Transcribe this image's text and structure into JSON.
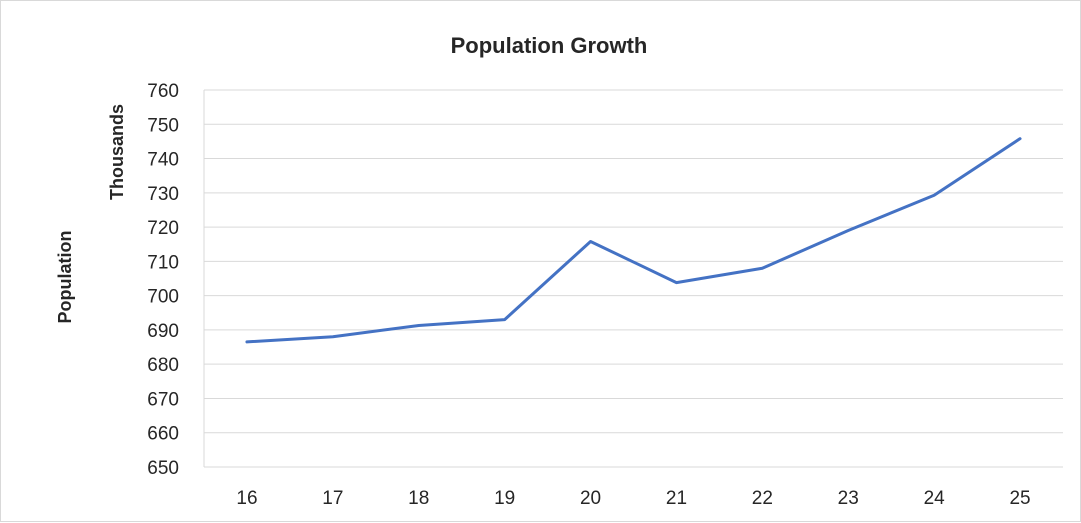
{
  "chart_data": {
    "type": "line",
    "title": "Population Growth",
    "ylabel": "Population",
    "y_units_label": "Thousands",
    "xlabel": "",
    "categories": [
      "16",
      "17",
      "18",
      "19",
      "20",
      "21",
      "22",
      "23",
      "24",
      "25"
    ],
    "series": [
      {
        "values": [
          686.5,
          688,
          691.3,
          693,
          715.8,
          703.8,
          708,
          719,
          729.3,
          745.8
        ],
        "color": "#4472c4"
      }
    ],
    "ylim": [
      650,
      760
    ],
    "yticks": [
      "650",
      "660",
      "670",
      "680",
      "690",
      "700",
      "710",
      "720",
      "730",
      "740",
      "750",
      "760"
    ],
    "grid": true,
    "legend": "none"
  }
}
